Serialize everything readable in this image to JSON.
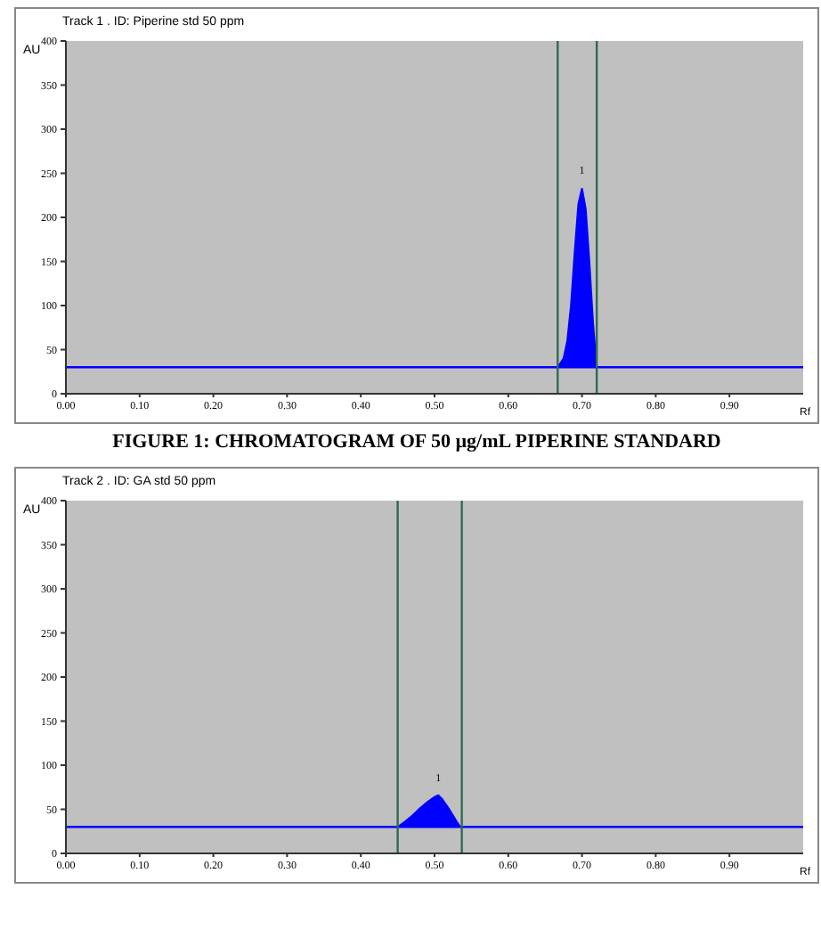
{
  "chart_data": [
    {
      "type": "area",
      "title": "Track 1 . ID: Piperine std 50 ppm",
      "xlabel": "Rf",
      "ylabel": "AU",
      "series": [
        {
          "color": "#0000ff",
          "x": [
            0.667,
            0.675,
            0.68,
            0.685,
            0.69,
            0.695,
            0.7,
            0.705,
            0.71,
            0.715,
            0.72
          ],
          "values": [
            30,
            40,
            60,
            100,
            160,
            215,
            233,
            210,
            150,
            80,
            30
          ]
        }
      ],
      "xlim": [
        0,
        1
      ],
      "xticks": [
        {
          "value": 0,
          "label": "0.00"
        },
        {
          "value": 0.1,
          "label": "0.10"
        },
        {
          "value": 0.2,
          "label": "0.20"
        },
        {
          "value": 0.3,
          "label": "0.30"
        },
        {
          "value": 0.4,
          "label": "0.40"
        },
        {
          "value": 0.5,
          "label": "0.50"
        },
        {
          "value": 0.6,
          "label": "0.60"
        },
        {
          "value": 0.7,
          "label": "0.70"
        },
        {
          "value": 0.8,
          "label": "0.80"
        },
        {
          "value": 0.9,
          "label": "0.90"
        }
      ],
      "ylim": [
        0,
        400
      ],
      "yticks": [
        0,
        50,
        100,
        150,
        200,
        250,
        300,
        350,
        400
      ],
      "ref_lines": [
        {
          "axis": "y",
          "value": 30,
          "color": "#0000ff"
        },
        {
          "axis": "x",
          "value": 0.667,
          "color": "#2e6b50"
        },
        {
          "axis": "x",
          "value": 0.72,
          "color": "#2e6b50"
        }
      ],
      "annotations": [
        "1",
        "FIGURE 1: CHROMATOGRAM OF 50 µg/mL PIPERINE STANDARD"
      ]
    },
    {
      "type": "area",
      "title": "Track 2 . ID: GA std 50 ppm",
      "xlabel": "Rf",
      "ylabel": "AU",
      "series": [
        {
          "color": "#0000ff",
          "x": [
            0.45,
            0.46,
            0.47,
            0.48,
            0.49,
            0.5,
            0.505,
            0.51,
            0.52,
            0.53,
            0.535
          ],
          "values": [
            30,
            36,
            43,
            51,
            58,
            64,
            66,
            62,
            50,
            36,
            30
          ]
        }
      ],
      "xlim": [
        0,
        1
      ],
      "xticks": [
        {
          "value": 0,
          "label": "0.00"
        },
        {
          "value": 0.1,
          "label": "0.10"
        },
        {
          "value": 0.2,
          "label": "0.20"
        },
        {
          "value": 0.3,
          "label": "0.30"
        },
        {
          "value": 0.4,
          "label": "0.40"
        },
        {
          "value": 0.5,
          "label": "0.50"
        },
        {
          "value": 0.6,
          "label": "0.60"
        },
        {
          "value": 0.7,
          "label": "0.70"
        },
        {
          "value": 0.8,
          "label": "0.80"
        },
        {
          "value": 0.9,
          "label": "0.90"
        }
      ],
      "ylim": [
        0,
        400
      ],
      "yticks": [
        0,
        50,
        100,
        150,
        200,
        250,
        300,
        350,
        400
      ],
      "ref_lines": [
        {
          "axis": "y",
          "value": 30,
          "color": "#0000ff"
        },
        {
          "axis": "x",
          "value": 0.45,
          "color": "#2e6b50"
        },
        {
          "axis": "x",
          "value": 0.537,
          "color": "#2e6b50"
        }
      ],
      "annotations": [
        "1"
      ]
    }
  ]
}
